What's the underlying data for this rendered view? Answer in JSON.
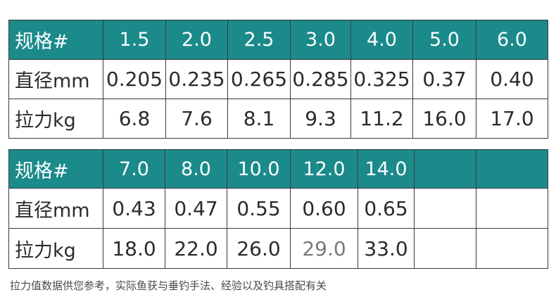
{
  "table1": {
    "header_label": "规格#",
    "sizes": [
      "1.5",
      "2.0",
      "2.5",
      "3.0",
      "4.0",
      "5.0",
      "6.0"
    ],
    "diameter_label": "直径mm",
    "diameters": [
      "0.205",
      "0.235",
      "0.265",
      "0.285",
      "0.325",
      "0.37",
      "0.40"
    ],
    "tension_label": "拉力kg",
    "tensions": [
      "6.8",
      "7.6",
      "8.1",
      "9.3",
      "11.2",
      "16.0",
      "17.0"
    ]
  },
  "table2": {
    "header_label": "规格#",
    "sizes": [
      "7.0",
      "8.0",
      "10.0",
      "12.0",
      "14.0",
      "",
      ""
    ],
    "diameter_label": "直径mm",
    "diameters": [
      "0.43",
      "0.47",
      "0.55",
      "0.60",
      "0.65",
      "",
      ""
    ],
    "tension_label": "拉力kg",
    "tensions": [
      "18.0",
      "22.0",
      "26.0",
      "29.0",
      "33.0",
      "",
      ""
    ]
  },
  "footnote": "拉力值数据供您参考，实际鱼获与垂钓手法、经验以及钓具搭配有关",
  "colors": {
    "header_bg": "#1b8a8b",
    "header_text": "#ffffff",
    "border": "#3a3a3a",
    "body_text": "#2b2b2b"
  }
}
